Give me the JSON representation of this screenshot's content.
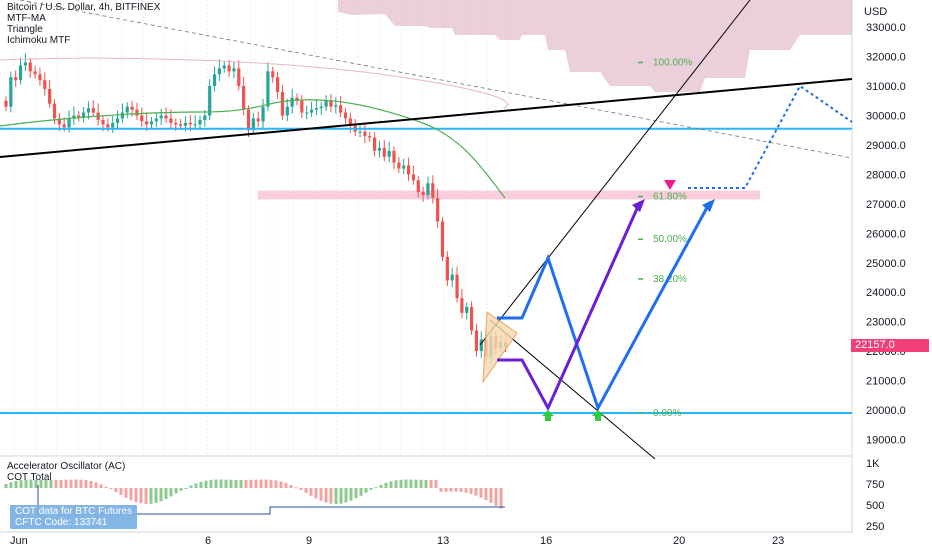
{
  "legend": {
    "title": "Bitcoin / U.S. Dollar, 4h, BITFINEX",
    "indicators": [
      "MTF-MA",
      "Triangle",
      "Ichimoku MTF"
    ]
  },
  "oscillator": {
    "name": "Accelerator Oscillator (AC)",
    "cot": "COT Total",
    "cot_box_line1": "COT data for BTC Futures",
    "cot_box_line2": "CFTC Code: 133741",
    "yticks": [
      "1K",
      "750",
      "500",
      "250"
    ]
  },
  "current_price": "22157.0",
  "colors": {
    "up": "#26a69a",
    "down": "#ef5350",
    "cyan_lines": "#29b6f6",
    "blue_projection": "#1e6ff0",
    "purple_projection": "#6a1fd6",
    "pink_zone": "#f8c8d8",
    "price_tag": "#f23f77"
  },
  "chart_data": {
    "type": "candlestick",
    "symbol": "Bitcoin / U.S. Dollar",
    "interval": "4h",
    "exchange": "BITFINEX",
    "y_axis_label": "USD",
    "ylim": [
      18500,
      34000
    ],
    "yticks": [
      19000,
      20000,
      21000,
      22000,
      23000,
      24000,
      25000,
      26000,
      27000,
      28000,
      29000,
      30000,
      31000,
      32000,
      33000
    ],
    "x_ticks": [
      "Jun",
      "6",
      "9",
      "13",
      "16",
      "20",
      "23"
    ],
    "fib_levels": [
      {
        "label": "100.00%",
        "price": 31800
      },
      {
        "label": "61.80%",
        "price": 27250
      },
      {
        "label": "50.00%",
        "price": 25800
      },
      {
        "label": "38.20%",
        "price": 24450
      },
      {
        "label": "0.00%",
        "price": 19900
      }
    ],
    "horizontal_levels": [
      29550,
      19900
    ],
    "resistance_zone": [
      27150,
      27450
    ],
    "closes": [
      30300,
      31300,
      31200,
      31700,
      31800,
      31500,
      31400,
      31200,
      30900,
      30400,
      29900,
      29700,
      29600,
      29900,
      30000,
      29950,
      30100,
      30250,
      30100,
      29850,
      29700,
      29600,
      29750,
      29900,
      30100,
      30300,
      30200,
      30000,
      29800,
      29700,
      29800,
      29900,
      30000,
      29900,
      29750,
      29700,
      29650,
      29750,
      29700,
      29700,
      29850,
      30000,
      31000,
      31400,
      31600,
      31700,
      31500,
      31600,
      31000,
      30200,
      29500,
      29900,
      29800,
      30300,
      31500,
      31300,
      30800,
      30000,
      30300,
      30600,
      30500,
      30100,
      30100,
      30200,
      30250,
      30300,
      30500,
      30300,
      30350,
      30100,
      29900,
      29650,
      29450,
      29450,
      29300,
      29250,
      28800,
      28900,
      28600,
      28800,
      28400,
      28200,
      28300,
      28000,
      27800,
      27400,
      27300,
      27700,
      27200,
      26400,
      25200,
      24400,
      24600,
      23800,
      23300,
      23500,
      22700,
      22000,
      22400,
      21800,
      22500,
      22100,
      22300,
      22157
    ]
  }
}
